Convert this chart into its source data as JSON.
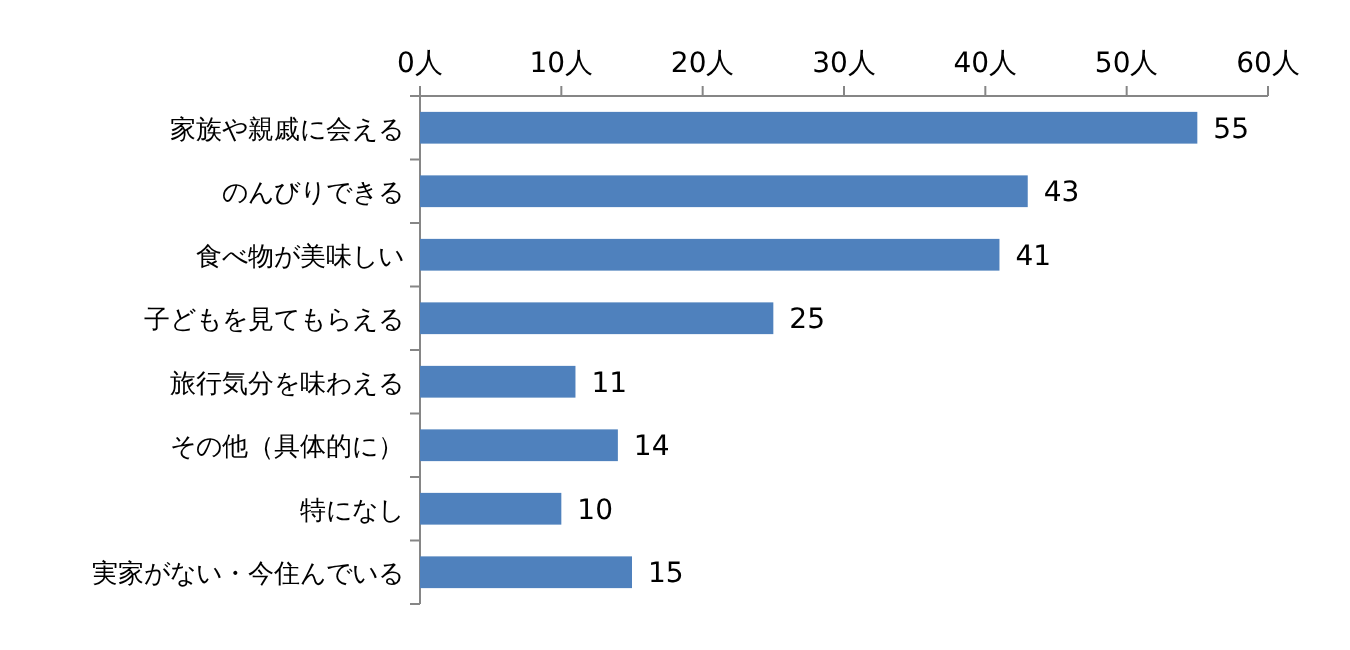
{
  "chart_data": {
    "type": "bar",
    "orientation": "horizontal",
    "categories": [
      "家族や親戚に会える",
      "のんびりできる",
      "食べ物が美味しい",
      "子どもを見てもらえる",
      "旅行気分を味わえる",
      "その他（具体的に）",
      "特になし",
      "実家がない・今住んでいる"
    ],
    "values": [
      55,
      43,
      41,
      25,
      11,
      14,
      10,
      15
    ],
    "color": "#4f81bd",
    "xlim": [
      0,
      60
    ],
    "xticks": [
      {
        "value": 0,
        "label": "0人"
      },
      {
        "value": 10,
        "label": "10人"
      },
      {
        "value": 20,
        "label": "20人"
      },
      {
        "value": 30,
        "label": "30人"
      },
      {
        "value": 40,
        "label": "40人"
      },
      {
        "value": 50,
        "label": "50人"
      },
      {
        "value": 60,
        "label": "60人"
      }
    ],
    "data_labels": true
  }
}
